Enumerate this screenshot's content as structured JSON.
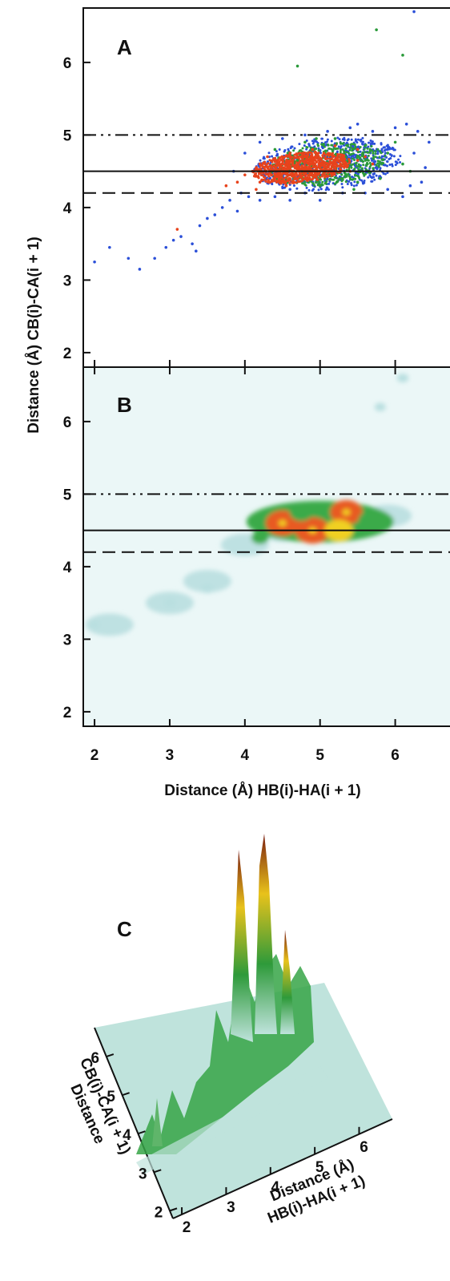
{
  "chart_data": [
    {
      "panel": "A",
      "type": "scatter",
      "xlabel": "Distance (Å) HB(i)-HA(i + 1)",
      "ylabel": "Distance (Å) CB(i)-CA(i + 1)",
      "xlim": [
        1.85,
        6.75
      ],
      "ylim": [
        1.8,
        6.75
      ],
      "yticks": [
        "2",
        "3",
        "4",
        "5",
        "6"
      ],
      "reference_lines": [
        {
          "y": 5.0,
          "style": "dash-dot-dot"
        },
        {
          "y": 4.5,
          "style": "solid"
        },
        {
          "y": 4.2,
          "style": "dashed"
        }
      ],
      "series": [
        {
          "color": "#e8431c",
          "points": [
            [
              4.1,
              4.5
            ],
            [
              4.3,
              4.55
            ],
            [
              4.5,
              4.6
            ],
            [
              4.7,
              4.55
            ],
            [
              4.9,
              4.65
            ],
            [
              5.1,
              4.6
            ],
            [
              5.3,
              4.7
            ],
            [
              5.5,
              4.65
            ],
            [
              4.2,
              4.35
            ],
            [
              4.4,
              4.4
            ],
            [
              4.6,
              4.45
            ],
            [
              4.8,
              4.4
            ],
            [
              5.0,
              4.5
            ],
            [
              5.2,
              4.55
            ],
            [
              5.4,
              4.5
            ],
            [
              4.3,
              4.7
            ],
            [
              4.6,
              4.75
            ],
            [
              4.9,
              4.8
            ],
            [
              5.2,
              4.85
            ],
            [
              5.5,
              4.8
            ],
            [
              4.0,
              4.45
            ],
            [
              4.2,
              4.6
            ],
            [
              4.45,
              4.5
            ],
            [
              4.75,
              4.7
            ],
            [
              5.05,
              4.75
            ],
            [
              5.35,
              4.6
            ],
            [
              5.6,
              4.7
            ],
            [
              3.9,
              4.35
            ],
            [
              3.75,
              4.3
            ],
            [
              3.1,
              3.7
            ],
            [
              4.15,
              4.25
            ],
            [
              4.55,
              4.3
            ],
            [
              5.7,
              4.6
            ]
          ]
        },
        {
          "color": "#2a9a3a",
          "points": [
            [
              4.4,
              4.8
            ],
            [
              4.8,
              4.9
            ],
            [
              5.2,
              4.95
            ],
            [
              5.6,
              4.85
            ],
            [
              5.9,
              4.75
            ],
            [
              6.1,
              4.6
            ],
            [
              5.0,
              4.3
            ],
            [
              5.5,
              4.35
            ],
            [
              5.8,
              4.4
            ],
            [
              4.7,
              4.65
            ],
            [
              5.3,
              4.4
            ],
            [
              6.0,
              4.9
            ],
            [
              5.75,
              6.45
            ],
            [
              6.1,
              6.1
            ],
            [
              4.7,
              5.95
            ],
            [
              5.45,
              4.25
            ],
            [
              4.95,
              4.95
            ],
            [
              6.2,
              4.5
            ]
          ]
        },
        {
          "color": "#2b4fd8",
          "points": [
            [
              2.0,
              3.25
            ],
            [
              2.2,
              3.45
            ],
            [
              2.6,
              3.15
            ],
            [
              2.8,
              3.3
            ],
            [
              2.95,
              3.45
            ],
            [
              3.05,
              3.55
            ],
            [
              3.15,
              3.6
            ],
            [
              3.3,
              3.5
            ],
            [
              3.4,
              3.75
            ],
            [
              3.5,
              3.85
            ],
            [
              3.6,
              3.9
            ],
            [
              3.7,
              4.0
            ],
            [
              3.8,
              4.1
            ],
            [
              3.9,
              3.95
            ],
            [
              3.95,
              4.2
            ],
            [
              4.05,
              4.15
            ],
            [
              4.2,
              4.1
            ],
            [
              4.4,
              4.15
            ],
            [
              4.6,
              4.1
            ],
            [
              4.8,
              4.2
            ],
            [
              5.0,
              4.1
            ],
            [
              5.3,
              4.2
            ],
            [
              5.6,
              4.2
            ],
            [
              5.9,
              4.25
            ],
            [
              6.2,
              4.3
            ],
            [
              6.4,
              4.55
            ],
            [
              6.45,
              4.9
            ],
            [
              6.3,
              5.05
            ],
            [
              6.0,
              5.1
            ],
            [
              5.7,
              5.05
            ],
            [
              5.4,
              5.1
            ],
            [
              5.1,
              5.05
            ],
            [
              4.8,
              5.0
            ],
            [
              4.5,
              4.95
            ],
            [
              4.2,
              4.9
            ],
            [
              4.0,
              4.75
            ],
            [
              3.85,
              4.5
            ],
            [
              6.25,
              4.75
            ],
            [
              6.35,
              4.35
            ],
            [
              6.15,
              5.15
            ],
            [
              5.5,
              5.15
            ],
            [
              4.6,
              4.25
            ],
            [
              6.1,
              4.15
            ],
            [
              6.25,
              6.7
            ],
            [
              3.35,
              3.4
            ],
            [
              2.45,
              3.3
            ]
          ]
        }
      ]
    },
    {
      "panel": "B",
      "type": "heatmap",
      "xlabel": "Distance (Å) HB(i)-HA(i + 1)",
      "ylabel": "Distance (Å) CB(i)-CA(i + 1)",
      "xlim": [
        1.85,
        6.75
      ],
      "ylim": [
        1.8,
        6.75
      ],
      "xticks": [
        "2",
        "3",
        "4",
        "5",
        "6"
      ],
      "yticks": [
        "2",
        "3",
        "4",
        "5",
        "6"
      ],
      "reference_lines": [
        {
          "y": 5.0,
          "style": "dash-dot-dot"
        },
        {
          "y": 4.5,
          "style": "solid"
        },
        {
          "y": 4.2,
          "style": "dashed"
        }
      ],
      "background_color": "#ebf7f7",
      "density_peaks": [
        {
          "x": 4.5,
          "y": 4.6,
          "level": 0.95
        },
        {
          "x": 4.9,
          "y": 4.5,
          "level": 1.0
        },
        {
          "x": 5.35,
          "y": 4.75,
          "level": 0.9
        },
        {
          "x": 5.25,
          "y": 4.5,
          "level": 0.75
        },
        {
          "x": 4.75,
          "y": 4.75,
          "level": 0.55
        },
        {
          "x": 5.65,
          "y": 4.65,
          "level": 0.45
        },
        {
          "x": 4.2,
          "y": 4.4,
          "level": 0.3
        },
        {
          "x": 3.5,
          "y": 3.7,
          "level": 0.12
        },
        {
          "x": 3.0,
          "y": 3.5,
          "level": 0.1
        },
        {
          "x": 2.0,
          "y": 3.2,
          "level": 0.06
        },
        {
          "x": 6.1,
          "y": 6.6,
          "level": 0.08
        },
        {
          "x": 5.8,
          "y": 6.2,
          "level": 0.06
        }
      ]
    },
    {
      "panel": "C",
      "type": "surface",
      "xlabel": "Distance (Å) HB(i)-HA(i + 1)",
      "ylabel": "Distance (Å) CB(i)-CA(i + 1)",
      "xticks": [
        "2",
        "3",
        "4",
        "5",
        "6"
      ],
      "yticks": [
        "2",
        "3",
        "4",
        "5",
        "6"
      ],
      "colormap": [
        "#bfe3dc",
        "#2e9a3a",
        "#e8c21b",
        "#7a1e10"
      ]
    }
  ],
  "panel_labels": {
    "a": "A",
    "b": "B",
    "c": "C"
  },
  "axis_titles": {
    "x_main": "Distance (Å) HB(i)-HA(i + 1)",
    "y_main": "Distance (Å) CB(i)-CA(i + 1)",
    "c_x_line1": "Distance (Å)",
    "c_x_line2": "HB(i)-HA(i + 1)",
    "c_y_line1": "Distance",
    "c_y_line2": "CB(i)-CA(i + 1)"
  },
  "colors": {
    "scatter_orange": "#e8431c",
    "scatter_green": "#2a9a3a",
    "scatter_blue": "#2b4fd8",
    "heat_bg": "#ebf7f7",
    "heat_low": "#b9dfe0",
    "heat_mid": "#3aaa4a",
    "heat_high": "#f0d020",
    "heat_peak": "#e85a20"
  }
}
